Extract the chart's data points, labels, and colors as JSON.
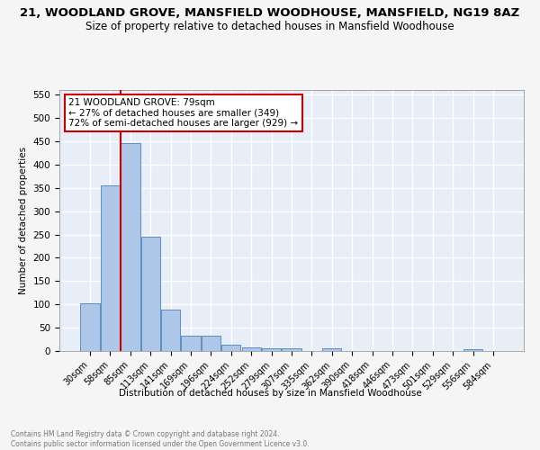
{
  "title": "21, WOODLAND GROVE, MANSFIELD WOODHOUSE, MANSFIELD, NG19 8AZ",
  "subtitle": "Size of property relative to detached houses in Mansfield Woodhouse",
  "xlabel": "Distribution of detached houses by size in Mansfield Woodhouse",
  "ylabel": "Number of detached properties",
  "bar_labels": [
    "30sqm",
    "58sqm",
    "85sqm",
    "113sqm",
    "141sqm",
    "169sqm",
    "196sqm",
    "224sqm",
    "252sqm",
    "279sqm",
    "307sqm",
    "335sqm",
    "362sqm",
    "390sqm",
    "418sqm",
    "446sqm",
    "473sqm",
    "501sqm",
    "529sqm",
    "556sqm",
    "584sqm"
  ],
  "bar_values": [
    103,
    355,
    447,
    246,
    88,
    33,
    33,
    14,
    8,
    6,
    5,
    0,
    5,
    0,
    0,
    0,
    0,
    0,
    0,
    3,
    0
  ],
  "bar_color": "#aec6e8",
  "bar_edge_color": "#5a8fc2",
  "annotation_line1": "21 WOODLAND GROVE: 79sqm",
  "annotation_line2": "← 27% of detached houses are smaller (349)",
  "annotation_line3": "72% of semi-detached houses are larger (929) →",
  "annotation_box_color": "#ffffff",
  "annotation_box_edge": "#cc0000",
  "vline_color": "#cc0000",
  "ylim": [
    0,
    560
  ],
  "yticks": [
    0,
    50,
    100,
    150,
    200,
    250,
    300,
    350,
    400,
    450,
    500,
    550
  ],
  "footnote": "Contains HM Land Registry data © Crown copyright and database right 2024.\nContains public sector information licensed under the Open Government Licence v3.0.",
  "bg_color": "#e8eef8",
  "grid_color": "#ffffff",
  "fig_bg_color": "#f5f5f5"
}
